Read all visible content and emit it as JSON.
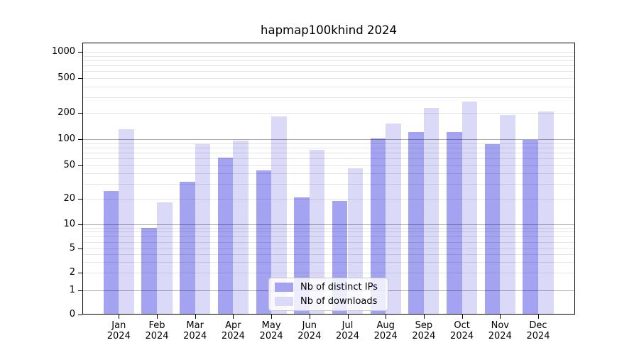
{
  "title": "hapmap100khind 2024",
  "chart_data": {
    "type": "bar",
    "title": "hapmap100khind 2024",
    "categories": [
      "Jan 2024",
      "Feb 2024",
      "Mar 2024",
      "Apr 2024",
      "May 2024",
      "Jun 2024",
      "Jul 2024",
      "Aug 2024",
      "Sep 2024",
      "Oct 2024",
      "Nov 2024",
      "Dec 2024"
    ],
    "series": [
      {
        "name": "Nb of distinct IPs",
        "color": "#a3a3f2",
        "values": [
          25,
          9,
          32,
          61,
          44,
          21,
          19,
          102,
          120,
          121,
          87,
          99
        ]
      },
      {
        "name": "Nb of downloads",
        "color": "#dadaf8",
        "values": [
          130,
          18,
          88,
          97,
          181,
          75,
          46,
          150,
          228,
          270,
          188,
          209
        ]
      }
    ],
    "xlabel": "",
    "ylabel": "",
    "y_axis": {
      "scale": "symlog",
      "ticks": [
        0,
        1,
        2,
        5,
        10,
        20,
        50,
        100,
        200,
        500,
        1000
      ],
      "range": [
        0,
        1325
      ],
      "grid": "both"
    },
    "legend_position": "lower center"
  }
}
